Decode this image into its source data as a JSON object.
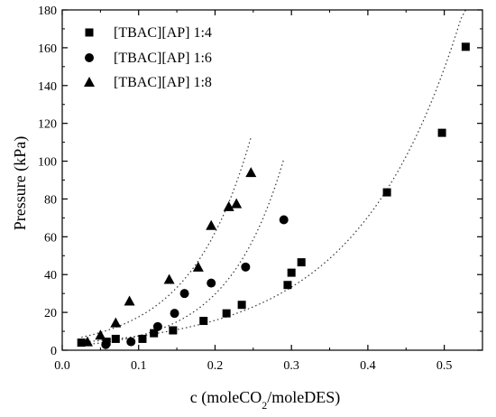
{
  "chart_data": {
    "type": "scatter",
    "xlabel_main": "c (moleCO",
    "xlabel_sub": "2",
    "xlabel_tail": "/moleDES)",
    "ylabel": "Pressure (kPa)",
    "xlim": [
      0.0,
      0.55
    ],
    "ylim": [
      0,
      180
    ],
    "xticks": [
      "0.0",
      "0.1",
      "0.2",
      "0.3",
      "0.4",
      "0.5"
    ],
    "yticks": [
      "0",
      "20",
      "40",
      "60",
      "80",
      "100",
      "120",
      "140",
      "160",
      "180"
    ],
    "legend_position": "top-left",
    "grid": false,
    "series": [
      {
        "name": "[TBAC][AP] 1:4",
        "marker": "square",
        "x": [
          0.025,
          0.058,
          0.07,
          0.105,
          0.12,
          0.145,
          0.185,
          0.215,
          0.235,
          0.295,
          0.3,
          0.313,
          0.425,
          0.497,
          0.528
        ],
        "y": [
          4,
          4.5,
          6,
          6,
          9,
          10.5,
          15.5,
          19.5,
          24,
          34.5,
          41,
          46.5,
          83.5,
          115,
          160.5
        ]
      },
      {
        "name": "[TBAC][AP] 1:6",
        "marker": "circle",
        "x": [
          0.057,
          0.09,
          0.125,
          0.147,
          0.16,
          0.195,
          0.24,
          0.29
        ],
        "y": [
          3,
          4.5,
          12.5,
          19.5,
          30,
          35.5,
          44,
          69
        ]
      },
      {
        "name": "[TBAC][AP] 1:8",
        "marker": "triangle",
        "x": [
          0.033,
          0.05,
          0.07,
          0.088,
          0.14,
          0.178,
          0.195,
          0.218,
          0.228,
          0.247
        ],
        "y": [
          4.5,
          8,
          14.5,
          26,
          37.5,
          44,
          66,
          76,
          77.5,
          94
        ]
      }
    ],
    "fits": [
      {
        "series": "[TBAC][AP] 1:4",
        "x_range": [
          0.025,
          0.528
        ],
        "curve": "exponential"
      },
      {
        "series": "[TBAC][AP] 1:6",
        "x_range": [
          0.025,
          0.29
        ],
        "curve": "exponential"
      },
      {
        "series": "[TBAC][AP] 1:8",
        "x_range": [
          0.025,
          0.247
        ],
        "curve": "exponential"
      }
    ]
  }
}
